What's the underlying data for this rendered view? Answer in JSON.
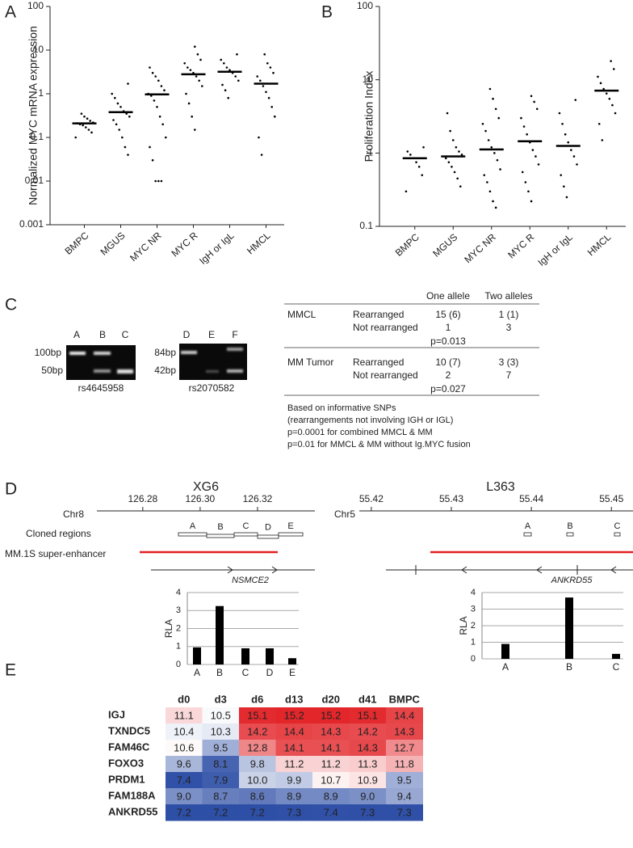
{
  "panel_a": {
    "label": "A",
    "type": "scatter",
    "log": true,
    "color": "#000000",
    "ylabel": "Normalized MYC mRNA expression",
    "categories": [
      "BMPC",
      "MGUS",
      "MYC NR",
      "MYC R",
      "IgH or IgL",
      "HMCL"
    ],
    "ylim": [
      0.001,
      100
    ],
    "yticks": [
      0.001,
      0.01,
      0.1,
      1,
      10,
      100
    ],
    "medians": [
      0.21,
      0.38,
      0.97,
      2.8,
      3.2,
      1.7
    ],
    "points": [
      [
        0.1,
        0.13,
        0.15,
        0.17,
        0.19,
        0.2,
        0.21,
        0.22,
        0.24,
        0.27,
        0.3,
        0.35
      ],
      [
        0.04,
        0.06,
        0.1,
        0.15,
        0.2,
        0.25,
        0.3,
        0.35,
        0.4,
        0.5,
        0.6,
        0.8,
        1.0,
        1.7
      ],
      [
        0.01,
        0.01,
        0.01,
        0.03,
        0.06,
        0.1,
        0.2,
        0.3,
        0.5,
        0.7,
        0.9,
        1.0,
        1.2,
        1.5,
        2,
        2.5,
        3,
        4
      ],
      [
        0.15,
        0.3,
        0.6,
        1,
        1.5,
        2,
        2.5,
        3,
        3.5,
        4,
        5,
        6,
        8,
        12
      ],
      [
        0.8,
        1.2,
        1.6,
        2,
        2.5,
        3,
        3.5,
        4,
        5,
        6,
        8
      ],
      [
        0.04,
        0.1,
        0.3,
        0.5,
        0.8,
        1.1,
        1.5,
        2,
        2.5,
        3,
        4,
        5,
        8
      ]
    ]
  },
  "panel_b": {
    "label": "B",
    "type": "scatter",
    "log": true,
    "color": "#000000",
    "ylabel": "Proliferation Index",
    "categories": [
      "BMPC",
      "MGUS",
      "MYC NR",
      "MYC R",
      "IgH or IgL",
      "HMCL"
    ],
    "ylim": [
      0.1,
      100
    ],
    "yticks": [
      0.1,
      1,
      10,
      100
    ],
    "medians": [
      0.85,
      0.9,
      1.12,
      1.45,
      1.25,
      7.1
    ],
    "points": [
      [
        0.3,
        0.5,
        0.65,
        0.75,
        0.85,
        0.95,
        1.05,
        1.2
      ],
      [
        0.35,
        0.45,
        0.55,
        0.65,
        0.75,
        0.85,
        0.95,
        1.05,
        1.2,
        1.5,
        2,
        3.5
      ],
      [
        0.18,
        0.22,
        0.3,
        0.4,
        0.5,
        0.6,
        0.8,
        1,
        1.2,
        1.5,
        2,
        2.5,
        3,
        4,
        5.5,
        7.5
      ],
      [
        0.22,
        0.3,
        0.4,
        0.55,
        0.7,
        0.9,
        1.1,
        1.4,
        1.8,
        2.3,
        3,
        4,
        5,
        6
      ],
      [
        0.25,
        0.35,
        0.5,
        0.7,
        0.9,
        1.1,
        1.4,
        1.8,
        2.5,
        3.5,
        5.3
      ],
      [
        1.5,
        2.5,
        3.5,
        4.5,
        5.5,
        6.5,
        7.5,
        9,
        11,
        14,
        18
      ]
    ]
  },
  "panel_c": {
    "label": "C",
    "gels": [
      {
        "lanes": [
          "A",
          "B",
          "C"
        ],
        "sizes": [
          "100bp",
          "50bp"
        ],
        "snp": "rs4645958"
      },
      {
        "lanes": [
          "D",
          "E",
          "F"
        ],
        "sizes": [
          "84bp",
          "42bp"
        ],
        "snp": "rs2070582"
      }
    ],
    "table": {
      "columns": [
        "One allele",
        "Two alleles"
      ],
      "groups": [
        {
          "name": "MMCL",
          "rows": [
            {
              "label": "Rearranged",
              "cells": [
                "15 (6)",
                "1 (1)"
              ]
            },
            {
              "label": "Not rearranged",
              "cells": [
                "1",
                "3"
              ]
            }
          ],
          "p": "p=0.013"
        },
        {
          "name": "MM Tumor",
          "rows": [
            {
              "label": "Rearranged",
              "cells": [
                "10 (7)",
                "3 (3)"
              ]
            },
            {
              "label": "Not rearranged",
              "cells": [
                "2",
                "7"
              ]
            }
          ],
          "p": "p=0.027"
        }
      ],
      "notes": [
        "Based on informative SNPs",
        "(rearrangements not involving IGH or IGL)",
        "p=0.0001 for combined MMCL & MM",
        "p=0.01 for MMCL & MM  without Ig.MYC fusion"
      ]
    }
  },
  "panel_d": {
    "label": "D",
    "cloned_label": "Cloned regions",
    "enhancer_label": "MM.1S super-enhancer",
    "tracks": [
      {
        "title": "XG6",
        "chrom": "Chr8",
        "xlim": [
          126.264,
          126.34
        ],
        "xticks": [
          126.28,
          {
            "value": 126.3,
            "label": "126.30"
          },
          126.32
        ],
        "gene": "NSMCE2",
        "rla": {
          "type": "bar",
          "ylabel": "RLA",
          "color": "#000000",
          "categories": [
            "A",
            "B",
            "C",
            "D",
            "E"
          ],
          "values": [
            0.95,
            3.25,
            0.9,
            0.9,
            0.35
          ],
          "ylim": [
            0,
            4
          ],
          "yticks": [
            0,
            1,
            2,
            3,
            4
          ],
          "grid": true
        }
      },
      {
        "title": "L363",
        "chrom": "Chr5",
        "xlim": [
          55.4185,
          55.4527
        ],
        "xticks": [
          55.42,
          55.43,
          55.44,
          55.45
        ],
        "gene": "ANKRD55",
        "rla": {
          "type": "bar",
          "ylabel": "RLA",
          "color": "#000000",
          "categories": [
            "A",
            "B",
            "C"
          ],
          "values": [
            0.9,
            3.7,
            0.3
          ],
          "ylim": [
            0,
            4
          ],
          "yticks": [
            0,
            1,
            2,
            3,
            4
          ],
          "grid": true
        }
      }
    ]
  },
  "panel_e": {
    "label": "E",
    "type": "heatmap",
    "colors": [
      "#2e4fa6",
      "#ffffff",
      "#e3262a"
    ],
    "columns": [
      "d0",
      "d3",
      "d6",
      "d13",
      "d20",
      "d41",
      "BMPC"
    ],
    "rows": [
      "IGJ",
      "TXNDC5",
      "FAM46C",
      "FOXO3",
      "PRDM1",
      "FAM188A",
      "ANKRD55"
    ],
    "values": [
      [
        11.1,
        10.5,
        15.1,
        15.2,
        15.2,
        15.1,
        14.4
      ],
      [
        10.4,
        10.3,
        14.2,
        14.4,
        14.3,
        14.2,
        14.3
      ],
      [
        10.6,
        9.5,
        12.8,
        14.1,
        14.1,
        14.3,
        12.7
      ],
      [
        9.6,
        8.1,
        9.8,
        11.2,
        11.2,
        11.3,
        11.8
      ],
      [
        7.4,
        7.9,
        10.0,
        9.9,
        10.7,
        10.9,
        9.5
      ],
      [
        9.0,
        8.7,
        8.6,
        8.9,
        8.9,
        9.0,
        9.4
      ],
      [
        7.2,
        7.2,
        7.2,
        7.3,
        7.4,
        7.3,
        7.3
      ]
    ],
    "value_labels": [
      [
        "11.1",
        "10.5",
        "15.1",
        "15.2",
        "15.2",
        "15.1",
        "14.4"
      ],
      [
        "10.4",
        "10.3",
        "14.2",
        "14.4",
        "14.3",
        "14.2",
        "14.3"
      ],
      [
        "10.6",
        "9.5",
        "12.8",
        "14.1",
        "14.1",
        "14.3",
        "12.7"
      ],
      [
        "9.6",
        "8.1",
        "9.8",
        "11.2",
        "11.2",
        "11.3",
        "11.8"
      ],
      [
        "7.4",
        "7.9",
        "10.0",
        "9.9",
        "10.7",
        "10.9",
        "9.5"
      ],
      [
        "9.0",
        "8.7",
        "8.6",
        "8.9",
        "8.9",
        "9.0",
        "9.4"
      ],
      [
        "7.2",
        "7.2",
        "7.2",
        "7.3",
        "7.4",
        "7.3",
        "7.3"
      ]
    ]
  }
}
